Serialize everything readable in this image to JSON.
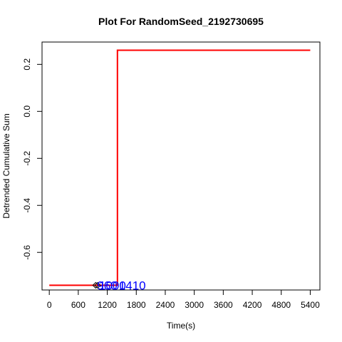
{
  "chart_data": {
    "type": "line",
    "title": "Plot For RandomSeed_2192730695",
    "xlabel": "Time(s)",
    "ylabel": "Detrended Cumulative Sum",
    "xlim": [
      -150,
      5600
    ],
    "ylim": [
      -0.76,
      0.295
    ],
    "x_ticks": [
      0,
      600,
      1200,
      1800,
      2400,
      3000,
      3600,
      4200,
      4800,
      5400
    ],
    "y_ticks": [
      0.2,
      0.0,
      -0.2,
      -0.4,
      -0.6
    ],
    "y_tick_labels": [
      "0.2",
      "0.0",
      "-0.2",
      "-0.4",
      "-0.6"
    ],
    "series": [
      {
        "color": "#ff0000",
        "points": [
          [
            0,
            -0.74
          ],
          [
            960,
            -0.74
          ],
          [
            1000,
            -0.74
          ],
          [
            1410,
            -0.74
          ],
          [
            1410,
            0.26
          ],
          [
            5400,
            0.26
          ]
        ]
      }
    ],
    "markers": [
      {
        "x": 960,
        "y": -0.74
      },
      {
        "x": 1000,
        "y": -0.74
      }
    ],
    "point_labels": [
      {
        "x": 960,
        "y": -0.74,
        "text": "960"
      },
      {
        "x": 1000,
        "y": -0.74,
        "text": "1000"
      },
      {
        "x": 1410,
        "y": -0.74,
        "text": "1410"
      }
    ],
    "label_color": "#0000ff"
  }
}
